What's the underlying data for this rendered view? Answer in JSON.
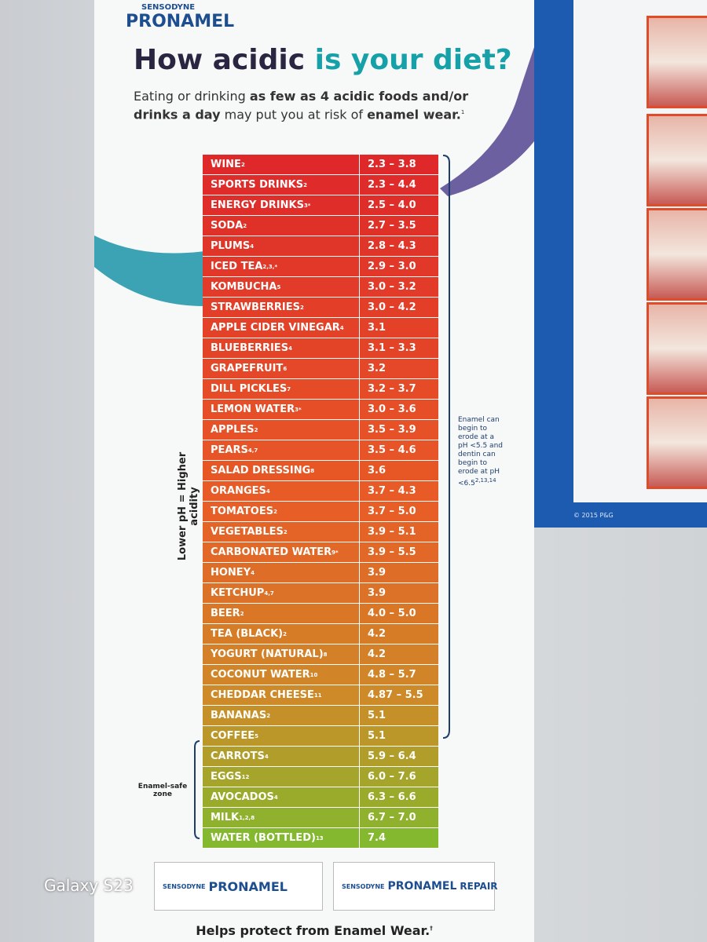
{
  "brand": {
    "maker": "SENSODYNE",
    "name": "PRONAMEL"
  },
  "title": {
    "dark": "How acidic",
    "teal": "is your diet?"
  },
  "subtitle": [
    {
      "text": "Eating or drinking ",
      "bold": false
    },
    {
      "text": "as few as 4 acidic foods and/or drinks a day",
      "bold": true
    },
    {
      "text": " may put you at risk of ",
      "bold": false
    },
    {
      "text": "enamel wear.",
      "bold": true
    }
  ],
  "subtitle_ref": "1",
  "side_label": "Lower pH = Higher acidity",
  "bracket_note": {
    "text": "Enamel can begin to erode at a pH <5.5 and dentin can begin to erode at pH <6.5",
    "ref": "2,13,14"
  },
  "safe_zone": "Enamel-safe zone",
  "table": {
    "rows": [
      [
        "WINE",
        "2",
        "2.3 – 3.8"
      ],
      [
        "SPORTS DRINKS",
        "2",
        "2.3 – 4.4"
      ],
      [
        "ENERGY DRINKS",
        "3*",
        "2.5 – 4.0"
      ],
      [
        "SODA",
        "2",
        "2.7 – 3.5"
      ],
      [
        "PLUMS",
        "4",
        "2.8 – 4.3"
      ],
      [
        "ICED TEA",
        "2,3,*",
        "2.9 – 3.0"
      ],
      [
        "KOMBUCHA",
        "5",
        "3.0 – 3.2"
      ],
      [
        "STRAWBERRIES",
        "2",
        "3.0 – 4.2"
      ],
      [
        "APPLE CIDER VINEGAR",
        "4",
        "3.1"
      ],
      [
        "BLUEBERRIES",
        "4",
        "3.1 – 3.3"
      ],
      [
        "GRAPEFRUIT",
        "6",
        "3.2"
      ],
      [
        "DILL PICKLES",
        "7",
        "3.2 – 3.7"
      ],
      [
        "LEMON WATER",
        "3*",
        "3.0 – 3.6"
      ],
      [
        "APPLES",
        "2",
        "3.5 – 3.9"
      ],
      [
        "PEARS",
        "4,7",
        "3.5 – 4.6"
      ],
      [
        "SALAD DRESSING",
        "8",
        "3.6"
      ],
      [
        "ORANGES",
        "4",
        "3.7 – 4.3"
      ],
      [
        "TOMATOES",
        "2",
        "3.7 – 5.0"
      ],
      [
        "VEGETABLES",
        "2",
        "3.9 – 5.1"
      ],
      [
        "CARBONATED WATER",
        "9*",
        "3.9 – 5.5"
      ],
      [
        "HONEY",
        "4",
        "3.9"
      ],
      [
        "KETCHUP",
        "4,7",
        "3.9"
      ],
      [
        "BEER",
        "2",
        "4.0 – 5.0"
      ],
      [
        "TEA (BLACK)",
        "2",
        "4.2"
      ],
      [
        "YOGURT (NATURAL)",
        "8",
        "4.2"
      ],
      [
        "COCONUT WATER",
        "10",
        "4.8 – 5.7"
      ],
      [
        "CHEDDAR CHEESE",
        "11",
        "4.87 – 5.5"
      ],
      [
        "BANANAS",
        "2",
        "5.1"
      ],
      [
        "COFFEE",
        "5",
        "5.1"
      ],
      [
        "CARROTS",
        "4",
        "5.9 – 6.4"
      ],
      [
        "EGGS",
        "12",
        "6.0 – 7.6"
      ],
      [
        "AVOCADOS",
        "4",
        "6.3 – 6.6"
      ],
      [
        "MILK",
        "1,2,8",
        "6.7 – 7.0"
      ],
      [
        "WATER (BOTTLED)",
        "13",
        "7.4"
      ]
    ]
  },
  "products": [
    {
      "maker": "SENSODYNE",
      "name": "PRONAMEL"
    },
    {
      "maker": "SENSODYNE",
      "name": "PRONAMEL",
      "extra": "REPAIR"
    }
  ],
  "footer": {
    "text": "Helps protect from Enamel Wear.",
    "ref": "†"
  },
  "copyright": "© 2015 P&G",
  "watermark": "Galaxy S23"
}
